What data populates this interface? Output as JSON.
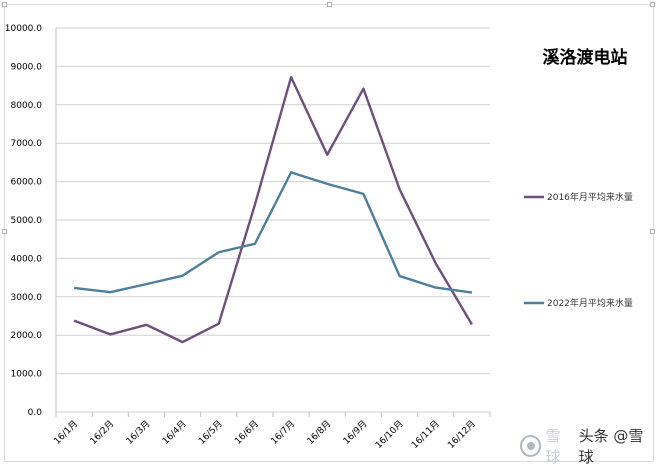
{
  "chart_data": {
    "type": "line",
    "title": "溪洛渡电站",
    "categories": [
      "16/1月",
      "16/2月",
      "16/3月",
      "16/4月",
      "16/5月",
      "16/6月",
      "16/7月",
      "16/8月",
      "16/9月",
      "16/10月",
      "16/11月",
      "16/12月"
    ],
    "series": [
      {
        "name": "2016年月平均来水量",
        "color": "#6e4f7c",
        "values": [
          2380,
          2020,
          2270,
          1820,
          2300,
          5400,
          8720,
          6700,
          8420,
          5800,
          3870,
          2280
        ]
      },
      {
        "name": "2022年月平均来水量",
        "color": "#4d7f9c",
        "values": [
          3230,
          3120,
          3330,
          3550,
          4160,
          4380,
          6240,
          5940,
          5680,
          3540,
          3240,
          3110
        ]
      }
    ],
    "ylim": [
      0,
      10000
    ],
    "yticks": [
      "0.0",
      "1000.0",
      "2000.0",
      "3000.0",
      "4000.0",
      "5000.0",
      "6000.0",
      "7000.0",
      "8000.0",
      "9000.0",
      "10000.0"
    ],
    "grid": true,
    "legend_position": "right"
  },
  "watermark": {
    "ghost_text": "雪球",
    "text": "头条 @雪球"
  }
}
